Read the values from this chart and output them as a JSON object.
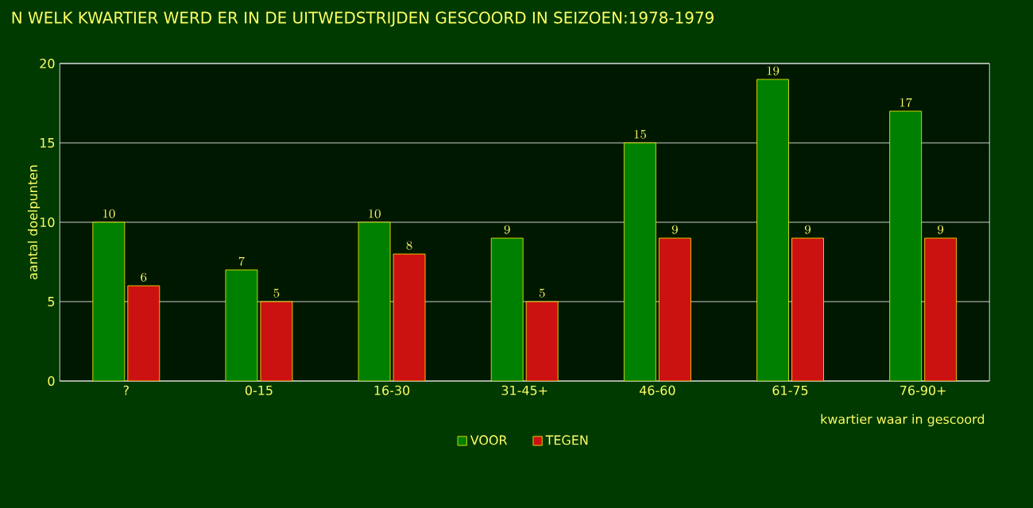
{
  "chart_data": {
    "type": "bar",
    "title": "N WELK KWARTIER WERD ER IN DE UITWEDSTRIJDEN GESCOORD IN SEIZOEN:1978-1979",
    "xlabel": "kwartier waar in gescoord",
    "ylabel": "aantal doelpunten",
    "categories": [
      "?",
      "0-15",
      "16-30",
      "31-45+",
      "46-60",
      "61-75",
      "76-90+"
    ],
    "series": [
      {
        "name": "VOOR",
        "color": "#008000",
        "values": [
          10,
          7,
          10,
          9,
          15,
          19,
          17
        ]
      },
      {
        "name": "TEGEN",
        "color": "#cc1111",
        "values": [
          6,
          5,
          8,
          5,
          9,
          9,
          9
        ]
      }
    ],
    "ylim": [
      0,
      20
    ],
    "yticks": [
      0,
      5,
      10,
      15,
      20
    ],
    "grid": "y",
    "legend": "bottom",
    "data_labels": true
  }
}
